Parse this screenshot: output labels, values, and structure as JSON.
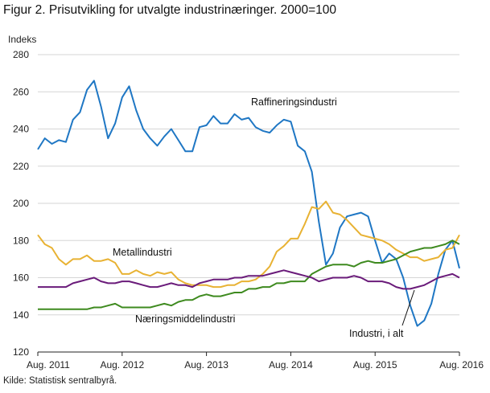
{
  "title": "Figur 2. Prisutvikling for utvalgte industrinæringer. 2000=100",
  "source": "Kilde: Statistisk sentralbyrå.",
  "chart_data": {
    "type": "line",
    "ylabel": "Indeks",
    "ylim": [
      120,
      280
    ],
    "yticks": [
      120,
      140,
      160,
      180,
      200,
      220,
      240,
      260,
      280
    ],
    "xlim": [
      "2011-08",
      "2016-08"
    ],
    "xticks": [
      "Aug. 2011",
      "Aug. 2012",
      "Aug. 2013",
      "Aug. 2014",
      "Aug. 2015",
      "Aug. 2016"
    ],
    "grid": "horizontal",
    "x": [
      "2011-08",
      "2011-09",
      "2011-10",
      "2011-11",
      "2011-12",
      "2012-01",
      "2012-02",
      "2012-03",
      "2012-04",
      "2012-05",
      "2012-06",
      "2012-07",
      "2012-08",
      "2012-09",
      "2012-10",
      "2012-11",
      "2012-12",
      "2013-01",
      "2013-02",
      "2013-03",
      "2013-04",
      "2013-05",
      "2013-06",
      "2013-07",
      "2013-08",
      "2013-09",
      "2013-10",
      "2013-11",
      "2013-12",
      "2014-01",
      "2014-02",
      "2014-03",
      "2014-04",
      "2014-05",
      "2014-06",
      "2014-07",
      "2014-08",
      "2014-09",
      "2014-10",
      "2014-11",
      "2014-12",
      "2015-01",
      "2015-02",
      "2015-03",
      "2015-04",
      "2015-05",
      "2015-06",
      "2015-07",
      "2015-08",
      "2015-09",
      "2015-10",
      "2015-11",
      "2015-12",
      "2016-01",
      "2016-02",
      "2016-03",
      "2016-04",
      "2016-05",
      "2016-06",
      "2016-07",
      "2016-08"
    ],
    "series": [
      {
        "name": "Raffineringsindustri",
        "color": "#1f77c4",
        "values": [
          229,
          235,
          232,
          234,
          233,
          245,
          249,
          261,
          266,
          252,
          235,
          243,
          257,
          263,
          250,
          240,
          235,
          231,
          236,
          240,
          234,
          228,
          228,
          241,
          242,
          247,
          243,
          243,
          248,
          245,
          246,
          241,
          239,
          238,
          242,
          245,
          244,
          231,
          228,
          217,
          190,
          167,
          173,
          187,
          193,
          194,
          195,
          193,
          180,
          168,
          173,
          170,
          160,
          145,
          134,
          137,
          146,
          162,
          175,
          180,
          165
        ]
      },
      {
        "name": "Metallindustri",
        "color": "#e8b233",
        "values": [
          183,
          178,
          176,
          170,
          167,
          170,
          170,
          172,
          169,
          169,
          170,
          168,
          162,
          162,
          164,
          162,
          161,
          163,
          162,
          163,
          159,
          157,
          156,
          156,
          156,
          155,
          155,
          156,
          156,
          158,
          158,
          159,
          162,
          166,
          174,
          177,
          181,
          181,
          189,
          198,
          197,
          201,
          195,
          194,
          191,
          187,
          183,
          182,
          181,
          180,
          178,
          175,
          173,
          171,
          171,
          169,
          170,
          171,
          175,
          176,
          183
        ]
      },
      {
        "name": "Næringsmiddelindustri",
        "color": "#3e8a1f",
        "values": [
          143,
          143,
          143,
          143,
          143,
          143,
          143,
          143,
          144,
          144,
          145,
          146,
          144,
          144,
          144,
          144,
          144,
          145,
          146,
          145,
          147,
          148,
          148,
          150,
          151,
          150,
          150,
          151,
          152,
          152,
          154,
          154,
          155,
          155,
          157,
          157,
          158,
          158,
          158,
          162,
          164,
          166,
          167,
          167,
          167,
          166,
          168,
          169,
          168,
          168,
          169,
          170,
          172,
          174,
          175,
          176,
          176,
          177,
          178,
          180,
          178
        ]
      },
      {
        "name": "Industri, i alt",
        "color": "#6a1b7a",
        "values": [
          155,
          155,
          155,
          155,
          155,
          157,
          158,
          159,
          160,
          158,
          157,
          157,
          158,
          158,
          157,
          156,
          155,
          155,
          156,
          157,
          156,
          156,
          155,
          157,
          158,
          159,
          159,
          159,
          160,
          160,
          161,
          161,
          161,
          162,
          163,
          164,
          163,
          162,
          161,
          160,
          158,
          159,
          160,
          160,
          160,
          161,
          160,
          158,
          158,
          158,
          157,
          155,
          154,
          154,
          155,
          156,
          158,
          160,
          161,
          162,
          160
        ]
      }
    ],
    "annotations": [
      {
        "text": "Raffineringsindustri",
        "series": "Raffineringsindustri"
      },
      {
        "text": "Metallindustri",
        "series": "Metallindustri"
      },
      {
        "text": "Næringsmiddelindustri",
        "series": "Næringsmiddelindustri"
      },
      {
        "text": "Industri, i alt",
        "series": "Industri, i alt"
      }
    ]
  }
}
